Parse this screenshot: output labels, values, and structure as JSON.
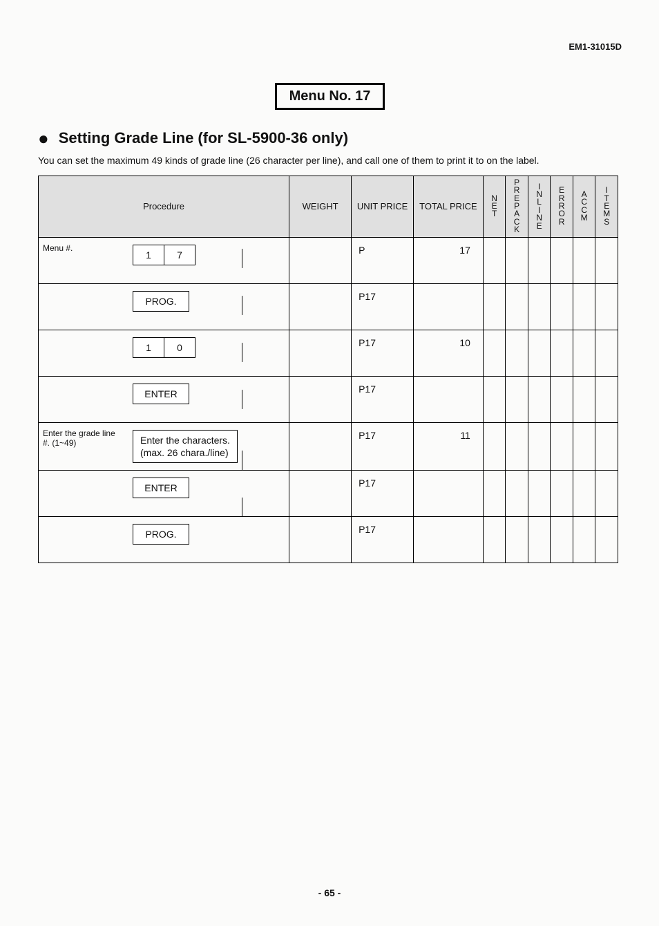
{
  "doc_id": "EM1-31015D",
  "menu_box": "Menu No. 17",
  "bullet": "●",
  "heading": "Setting Grade Line (for SL-5900-36 only)",
  "intro": "You can set the maximum 49 kinds of grade line (26 character per line), and call one of them to print it to on the label.",
  "columns": {
    "procedure": "Procedure",
    "weight": "WEIGHT",
    "unit": "UNIT PRICE",
    "total": "TOTAL PRICE",
    "narrow": [
      "NET",
      "PREPACK",
      "INLINE",
      "ERROR",
      "ACCM",
      "ITEMS"
    ]
  },
  "rows": [
    {
      "left": "Menu #.",
      "step": {
        "type": "keys",
        "keys": [
          "1",
          "7"
        ]
      },
      "unit": "P",
      "total": "17"
    },
    {
      "left": "",
      "step": {
        "type": "wide",
        "label": "PROG."
      },
      "unit": "P17",
      "total": ""
    },
    {
      "left": "",
      "step": {
        "type": "keys",
        "keys": [
          "1",
          "0"
        ]
      },
      "unit": "P17",
      "total": "10"
    },
    {
      "left": "",
      "step": {
        "type": "wide",
        "label": "ENTER"
      },
      "unit": "P17",
      "total": ""
    },
    {
      "left": "Enter the grade line #.  (1~49)",
      "step": {
        "type": "text",
        "lines": [
          "Enter the characters.",
          "(max. 26 chara./line)"
        ]
      },
      "unit": "P17",
      "total": "11"
    },
    {
      "left": "",
      "step": {
        "type": "wide",
        "label": "ENTER"
      },
      "unit": "P17",
      "total": ""
    },
    {
      "left": "",
      "step": {
        "type": "wide",
        "label": "PROG."
      },
      "unit": "P17",
      "total": ""
    }
  ],
  "page_number": "- 65 -"
}
